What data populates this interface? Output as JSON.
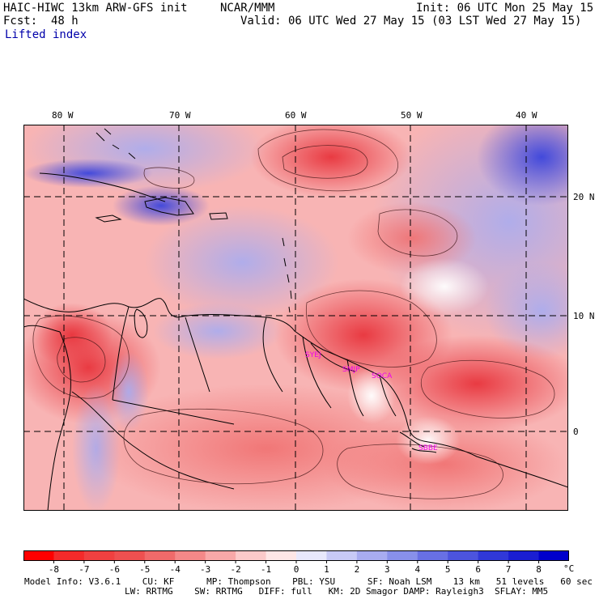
{
  "header": {
    "model": "HAIC-HIWC 13km ARW-GFS init",
    "org": "NCAR/MMM",
    "init": "Init: 06 UTC Mon 25 May 15",
    "fcst": "Fcst:  48 h",
    "valid": "Valid: 06 UTC Wed 27 May 15 (03 LST Wed 27 May 15)",
    "field": "Lifted index"
  },
  "map": {
    "lon_labels": [
      "80 W",
      "70 W",
      "60 W",
      "50 W",
      "40 W"
    ],
    "lat_labels": [
      "20 N",
      "10 N",
      "0"
    ],
    "stations": [
      "SYEJ",
      "SMJP",
      "SOCA",
      "SBBE"
    ],
    "colors": {
      "unstable": "#e8343c",
      "neutral": "#ffffff",
      "stable": "#2233dd",
      "station": "#ee00ee"
    }
  },
  "colorbar": {
    "ticks": [
      "-8",
      "-7",
      "-6",
      "-5",
      "-4",
      "-3",
      "-2",
      "-1",
      "0",
      "1",
      "2",
      "3",
      "4",
      "5",
      "6",
      "7",
      "8"
    ],
    "unit": "°C",
    "colors": [
      "#ff0000",
      "#f42a2a",
      "#f04040",
      "#ee5050",
      "#f06a6a",
      "#f48888",
      "#f8a8a8",
      "#fbcaca",
      "#fde6e6",
      "#e8e8fc",
      "#c8caf6",
      "#a8acf0",
      "#8890ea",
      "#6870e4",
      "#4c54de",
      "#3038d8",
      "#1a1ed2",
      "#0000cc"
    ]
  },
  "footer": {
    "line1": "Model Info: V3.6.1    CU: KF      MP: Thompson    PBL: YSU      SF: Noah LSM    13 km   51 levels   60 sec",
    "line2": "LW: RRTMG    SW: RRTMG   DIFF: full   KM: 2D Smagor DAMP: Rayleigh3  SFLAY: MM5"
  }
}
